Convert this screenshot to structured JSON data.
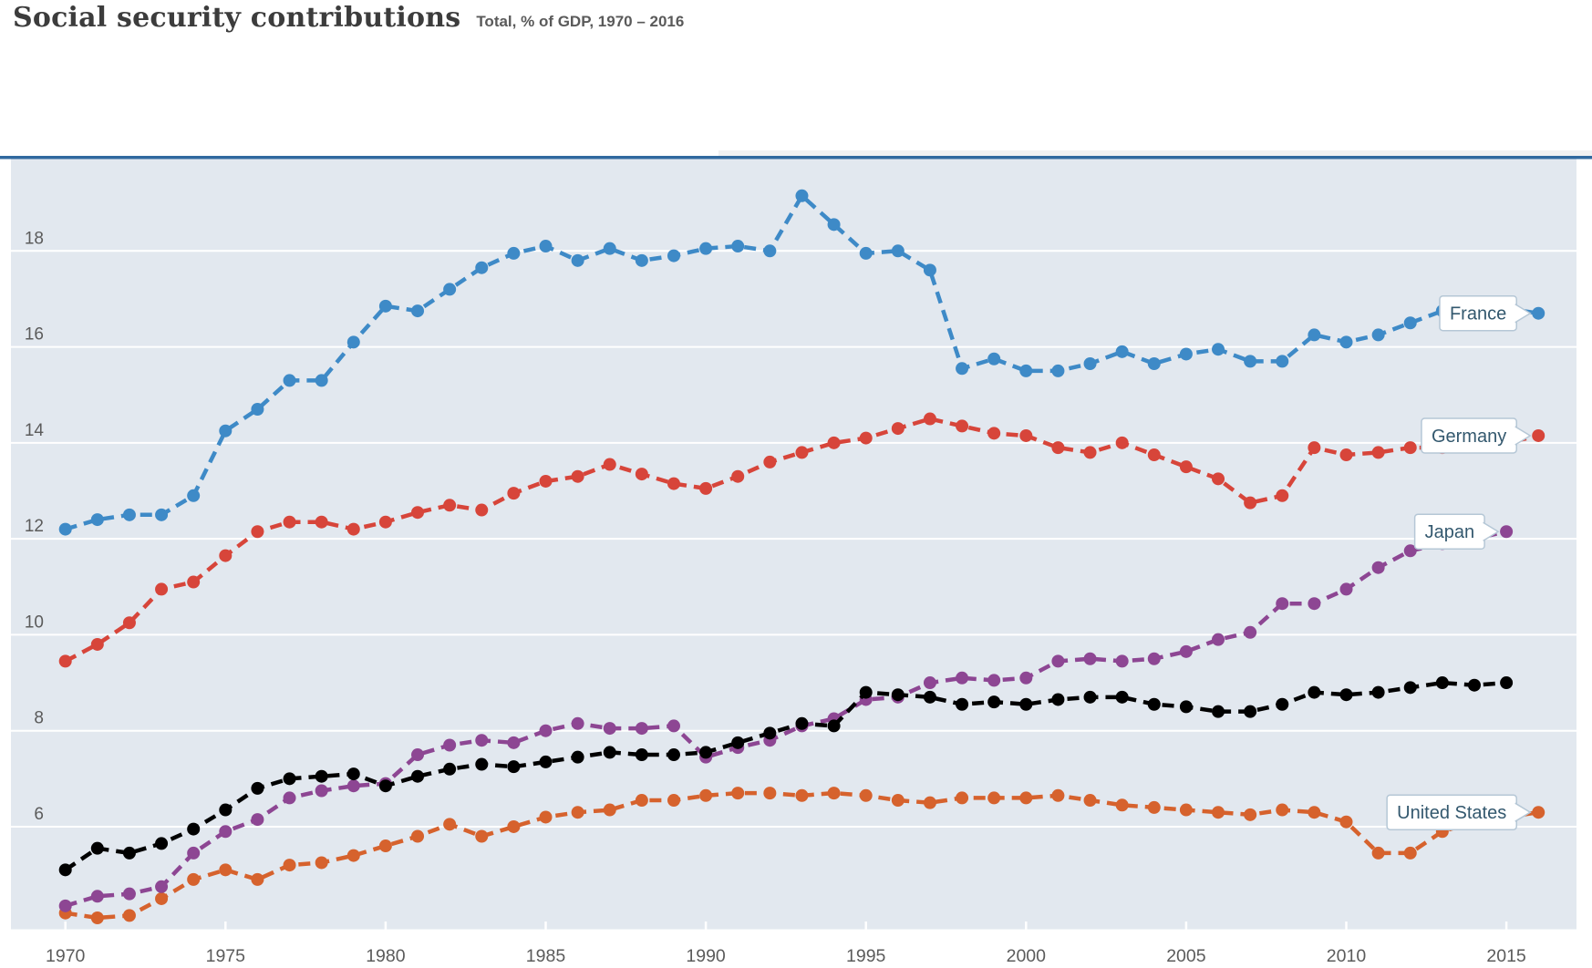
{
  "header": {
    "title": "Social security contributions",
    "subtitle": "Total, % of GDP, 1970 – 2016"
  },
  "colors": {
    "plot_background": "#e2e8ef",
    "gridline": "#ffffff",
    "top_rule": "#30699f",
    "timeline_track": "#f1f1f2",
    "axis_label": "#5b5b5b",
    "callout_text": "#33586e",
    "callout_border": "#b5c7d6",
    "callout_fill": "#ffffff"
  },
  "chart_data": {
    "type": "line",
    "title": "Social security contributions",
    "subtitle": "Total, % of GDP, 1970 – 2016",
    "xlabel": "",
    "ylabel": "",
    "grid": true,
    "legend_position": "end-of-line callout labels",
    "marker_style": "dashed line with circular markers",
    "x_axis": {
      "range": [
        1970,
        2016
      ],
      "ticks": [
        1970,
        1975,
        1980,
        1985,
        1990,
        1995,
        2000,
        2005,
        2010,
        2015
      ]
    },
    "y_axis": {
      "range": [
        3.9,
        19.9
      ],
      "ticks": [
        6,
        8,
        10,
        12,
        14,
        16,
        18
      ],
      "unit": "% of GDP"
    },
    "series": [
      {
        "id": "france",
        "name": "France",
        "label": "France",
        "labeled": true,
        "color": "#3e8ac7",
        "start_year": 1970,
        "values": [
          12.2,
          12.4,
          12.5,
          12.5,
          12.9,
          14.25,
          14.7,
          15.3,
          15.3,
          16.1,
          16.85,
          16.75,
          17.2,
          17.65,
          17.95,
          18.1,
          17.8,
          18.05,
          17.8,
          17.9,
          18.05,
          18.1,
          18.0,
          19.15,
          18.55,
          17.95,
          18.0,
          17.6,
          15.55,
          15.75,
          15.5,
          15.5,
          15.65,
          15.9,
          15.65,
          15.85,
          15.95,
          15.7,
          15.7,
          16.25,
          16.1,
          16.25,
          16.5,
          16.75,
          16.8,
          16.8,
          16.7
        ]
      },
      {
        "id": "germany",
        "name": "Germany",
        "label": "Germany",
        "labeled": true,
        "color": "#d7453a",
        "start_year": 1970,
        "values": [
          9.45,
          9.8,
          10.25,
          10.95,
          11.1,
          11.65,
          12.15,
          12.35,
          12.35,
          12.2,
          12.35,
          12.55,
          12.7,
          12.6,
          12.95,
          13.2,
          13.3,
          13.55,
          13.35,
          13.15,
          13.05,
          13.3,
          13.6,
          13.8,
          14.0,
          14.1,
          14.3,
          14.5,
          14.35,
          14.2,
          14.15,
          13.9,
          13.8,
          14.0,
          13.75,
          13.5,
          13.25,
          12.75,
          12.9,
          13.9,
          13.75,
          13.8,
          13.9,
          13.9,
          14.0,
          14.0,
          14.15
        ]
      },
      {
        "id": "united-states",
        "name": "United States",
        "label": "United States",
        "labeled": true,
        "color": "#d6622d",
        "start_year": 1970,
        "values": [
          4.2,
          4.1,
          4.15,
          4.5,
          4.9,
          5.1,
          4.9,
          5.2,
          5.25,
          5.4,
          5.6,
          5.8,
          6.05,
          5.8,
          6.0,
          6.2,
          6.3,
          6.35,
          6.55,
          6.55,
          6.65,
          6.7,
          6.7,
          6.65,
          6.7,
          6.65,
          6.55,
          6.5,
          6.6,
          6.6,
          6.6,
          6.65,
          6.55,
          6.45,
          6.4,
          6.35,
          6.3,
          6.25,
          6.35,
          6.3,
          6.1,
          5.45,
          5.45,
          5.9,
          6.1,
          6.2,
          6.3
        ]
      },
      {
        "id": "japan",
        "name": "Japan",
        "label": "Japan",
        "labeled": true,
        "color": "#8d4693",
        "start_year": 1970,
        "values": [
          4.35,
          4.55,
          4.6,
          4.75,
          5.45,
          5.9,
          6.15,
          6.6,
          6.75,
          6.85,
          6.9,
          7.5,
          7.7,
          7.8,
          7.75,
          8.0,
          8.15,
          8.05,
          8.05,
          8.1,
          7.45,
          7.65,
          7.8,
          8.1,
          8.25,
          8.65,
          8.7,
          9.0,
          9.1,
          9.05,
          9.1,
          9.45,
          9.5,
          9.45,
          9.5,
          9.65,
          9.9,
          10.05,
          10.65,
          10.65,
          10.95,
          11.4,
          11.75,
          11.9,
          12.0,
          12.15
        ]
      },
      {
        "id": "unlabeled-black",
        "name": "",
        "label": "",
        "labeled": false,
        "color": "#000000",
        "start_year": 1970,
        "values": [
          5.1,
          5.55,
          5.45,
          5.65,
          5.95,
          6.35,
          6.8,
          7.0,
          7.05,
          7.1,
          6.85,
          7.05,
          7.2,
          7.3,
          7.25,
          7.35,
          7.45,
          7.55,
          7.5,
          7.5,
          7.55,
          7.75,
          7.95,
          8.15,
          8.1,
          8.8,
          8.75,
          8.7,
          8.55,
          8.6,
          8.55,
          8.65,
          8.7,
          8.7,
          8.55,
          8.5,
          8.4,
          8.4,
          8.55,
          8.8,
          8.75,
          8.8,
          8.9,
          9.0,
          8.95,
          9.0
        ]
      }
    ]
  }
}
